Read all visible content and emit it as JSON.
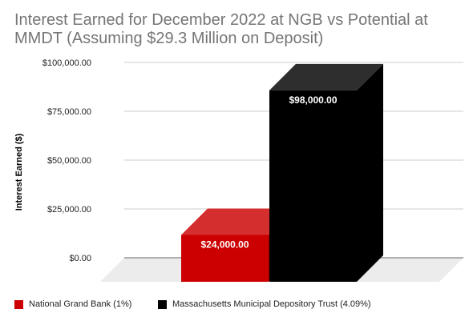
{
  "chart_data": {
    "type": "bar",
    "style": "3d",
    "title": "Interest Earned for December 2022 at NGB vs Potential at MMDT (Assuming $29.3 Million on Deposit)",
    "xlabel": "",
    "ylabel": "Interest Earned ($)",
    "ylim": [
      0,
      100000
    ],
    "yticks": [
      0,
      25000,
      50000,
      75000,
      100000
    ],
    "ytick_labels": [
      "$0.00",
      "$25,000.00",
      "$50,000.00",
      "$75,000.00",
      "$100,000.00"
    ],
    "grid": true,
    "legend_position": "bottom-left",
    "series": [
      {
        "name": "National Grand Bank (1%)",
        "value": 24000,
        "label": "$24,000.00",
        "color": "#cc0000"
      },
      {
        "name": "Massachusetts Municipal Depository Trust (4.09%)",
        "value": 98000,
        "label": "$98,000.00",
        "color": "#000000"
      }
    ]
  }
}
